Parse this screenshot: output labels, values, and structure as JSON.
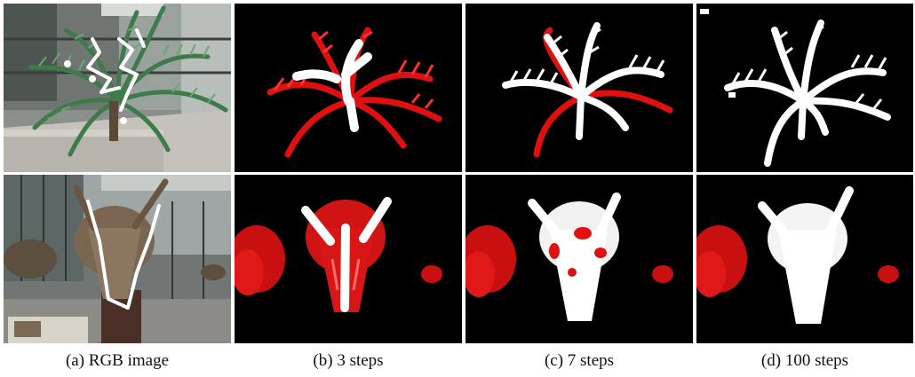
{
  "figure": {
    "columns": [
      {
        "caption": "(a) RGB image"
      },
      {
        "caption": "(b) 3 steps"
      },
      {
        "caption": "(c) 7 steps"
      },
      {
        "caption": "(d) 100 steps"
      }
    ],
    "rows": [
      {
        "subject": "fern-plant"
      },
      {
        "subject": "triceratops-skull"
      }
    ]
  },
  "colors": {
    "mask_background": "#000000",
    "foreground_white": "#ffffff",
    "background_red": "#e01010",
    "scribble": "#ffffff"
  }
}
